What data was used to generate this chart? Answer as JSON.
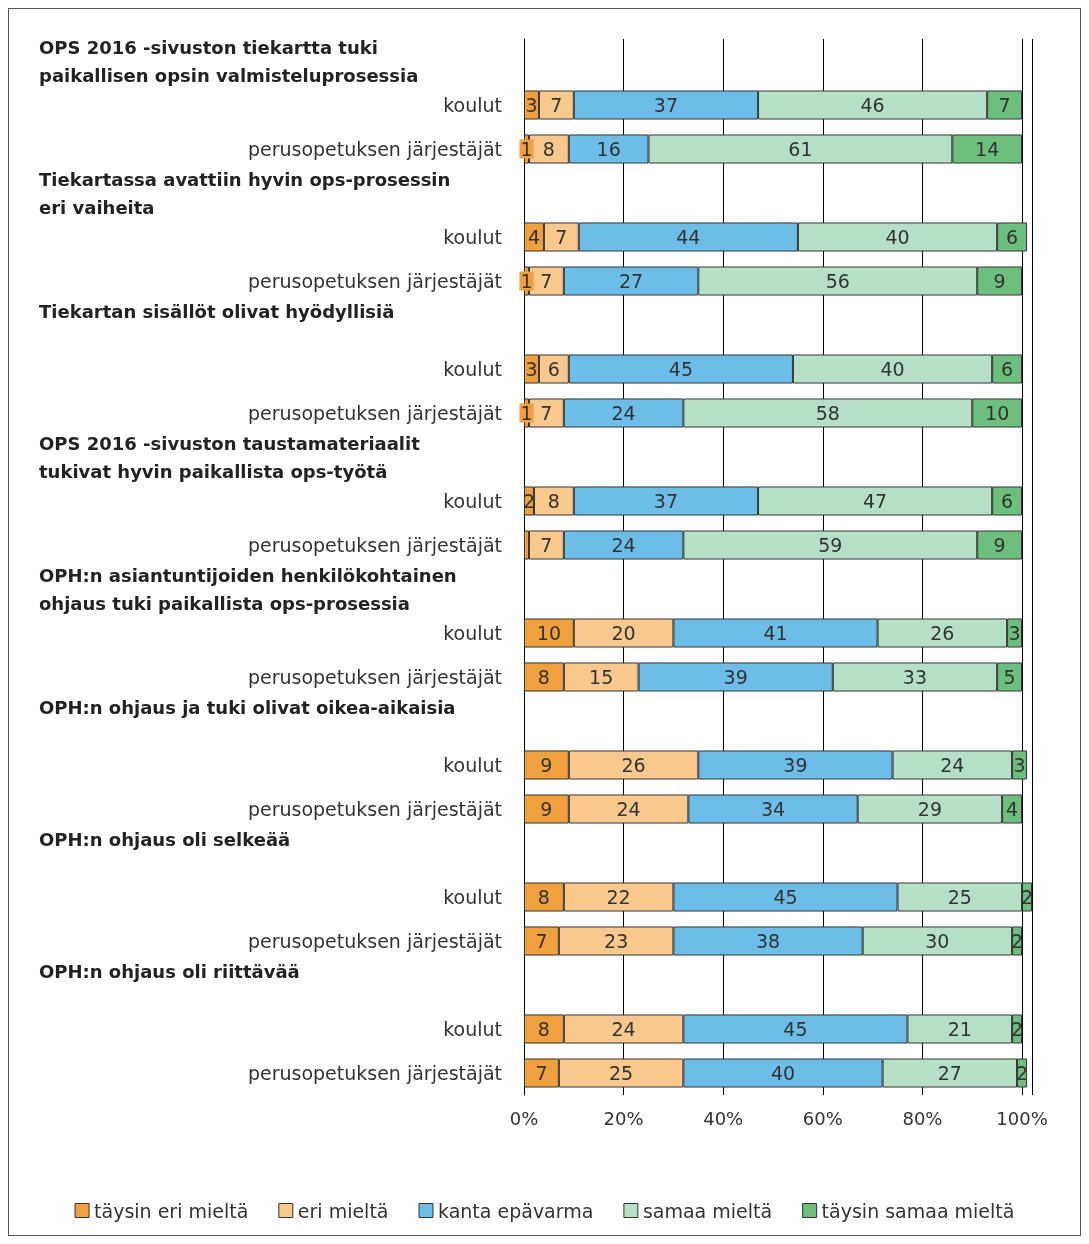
{
  "chart_data": {
    "type": "bar",
    "orientation": "horizontal",
    "stacked": true,
    "categories": [
      null,
      "koulut",
      "perusopetuksen järjestäjät",
      null,
      "koulut",
      "perusopetuksen järjestäjät",
      null,
      "koulut",
      "perusopetuksen järjestäjät",
      null,
      "koulut",
      "perusopetuksen järjestäjät",
      null,
      "koulut",
      "perusopetuksen järjestäjät",
      null,
      "koulut",
      "perusopetuksen järjestäjät",
      null,
      "koulut",
      "perusopetuksen järjestäjät",
      null,
      "koulut",
      "perusopetuksen järjestäjät"
    ],
    "annotations": [
      "OPS 2016 -sivuston tiekartta tuki paikallisen opsin valmisteluprosessia",
      "Tiekartassa avattiin hyvin ops-prosessin eri vaiheita",
      "Tiekartan sisällöt olivat hyödyllisiä",
      "OPS 2016 -sivuston taustamateriaalit tukivat hyvin paikallista ops-työtä",
      "OPH:n asiantuntijoiden henkilökohtainen ohjaus tuki paikallista ops-prosessia",
      "OPH:n ohjaus ja tuki olivat oikea-aikaisia",
      "OPH:n ohjaus oli selkeää",
      "OPH:n ohjaus oli riittävää"
    ],
    "series": [
      {
        "name": "täysin eri mieltä",
        "color": "#f0a03c",
        "values": [
          null,
          3,
          1,
          null,
          4,
          1,
          null,
          3,
          1,
          null,
          2,
          1,
          null,
          10,
          8,
          null,
          9,
          9,
          null,
          8,
          7,
          null,
          8,
          7
        ],
        "value_labels": [
          null,
          "3",
          "1",
          null,
          "4",
          "1",
          null,
          "3",
          "1",
          null,
          "2",
          null,
          null,
          "10",
          "8",
          null,
          "9",
          "9",
          null,
          "8",
          "7",
          null,
          "8",
          "7"
        ]
      },
      {
        "name": "eri mieltä",
        "color": "#f8c88c",
        "values": [
          null,
          7,
          8,
          null,
          7,
          7,
          null,
          6,
          7,
          null,
          8,
          7,
          null,
          20,
          15,
          null,
          26,
          24,
          null,
          22,
          23,
          null,
          24,
          25
        ]
      },
      {
        "name": "kanta epävarma",
        "color": "#6cbde8",
        "values": [
          null,
          37,
          16,
          null,
          44,
          27,
          null,
          45,
          24,
          null,
          37,
          24,
          null,
          41,
          39,
          null,
          39,
          34,
          null,
          45,
          38,
          null,
          45,
          40
        ]
      },
      {
        "name": "samaa mieltä",
        "color": "#b6e0c6",
        "values": [
          null,
          46,
          61,
          null,
          40,
          56,
          null,
          40,
          58,
          null,
          47,
          59,
          null,
          26,
          33,
          null,
          24,
          29,
          null,
          25,
          30,
          null,
          21,
          27
        ]
      },
      {
        "name": "täysin samaa mieltä",
        "color": "#6dbf7e",
        "values": [
          null,
          7,
          14,
          null,
          6,
          9,
          null,
          6,
          10,
          null,
          6,
          9,
          null,
          3,
          5,
          null,
          3,
          4,
          null,
          2,
          2,
          null,
          2,
          2
        ]
      }
    ],
    "data_labels": true,
    "xlim": [
      0,
      102
    ],
    "xticks": [
      {
        "value": 0,
        "label": "0%"
      },
      {
        "value": 20,
        "label": "20%"
      },
      {
        "value": 40,
        "label": "40%"
      },
      {
        "value": 60,
        "label": "60%"
      },
      {
        "value": 80,
        "label": "80%"
      },
      {
        "value": 100,
        "label": "100%"
      }
    ],
    "grid": "x",
    "legend": "bottom"
  }
}
